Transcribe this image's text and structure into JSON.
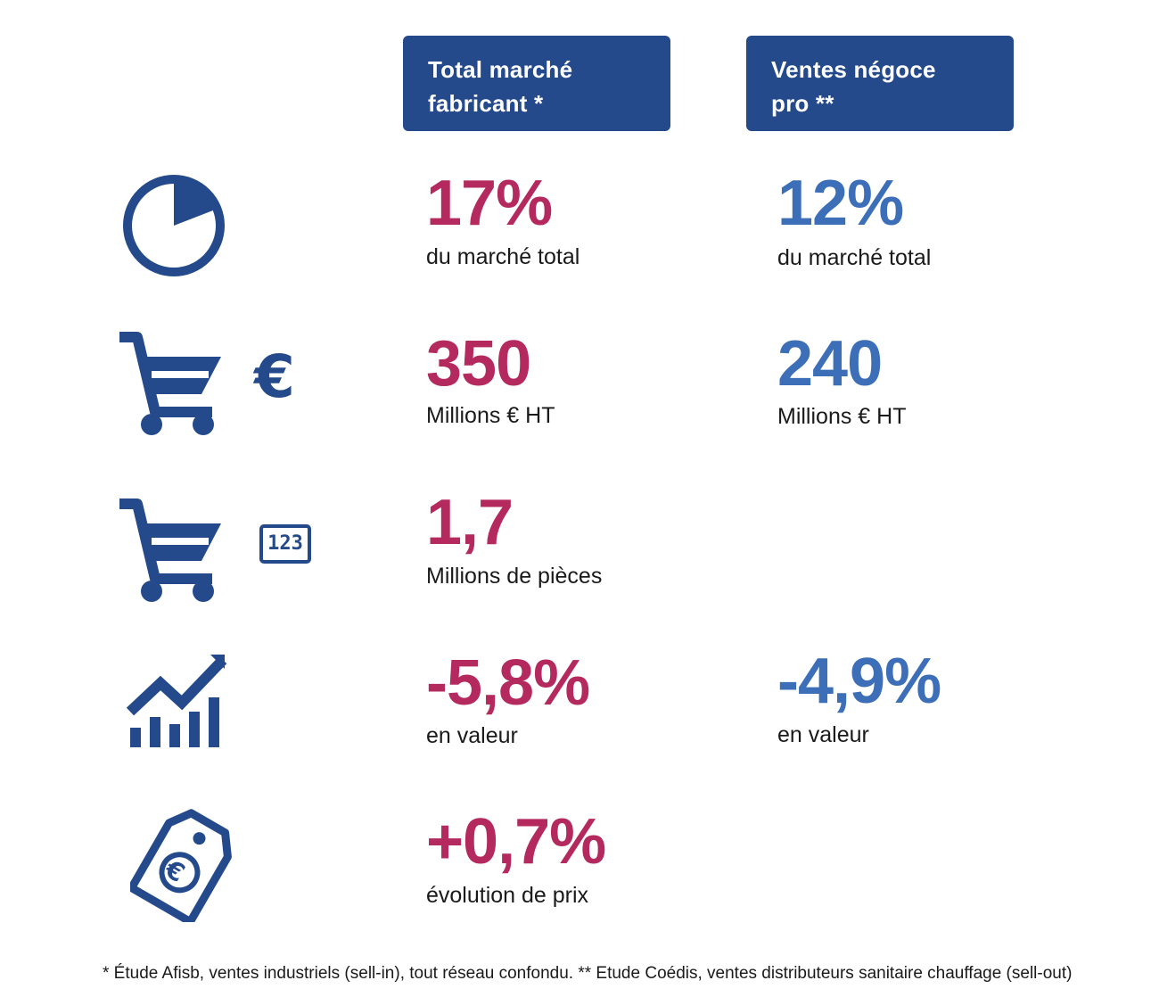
{
  "headers": {
    "col1_line1": "Total marché",
    "col1_line2": "fabricant *",
    "col2_line1": "Ventes négoce",
    "col2_line2": "pro **"
  },
  "rows": [
    {
      "icon": "pie-chart-icon",
      "col1": {
        "value": "17%",
        "label": "du marché total"
      },
      "col2": {
        "value": "12%",
        "label": "du marché total"
      }
    },
    {
      "icon": "cart-euro-icon",
      "badge": "€",
      "col1": {
        "value": "350",
        "label": "Millions € HT"
      },
      "col2": {
        "value": "240",
        "label": "Millions € HT"
      }
    },
    {
      "icon": "cart-count-icon",
      "badge": "123",
      "col1": {
        "value": "1,7",
        "label": "Millions de pièces"
      }
    },
    {
      "icon": "growth-chart-icon",
      "col1": {
        "value": "-5,8%",
        "label": "en valeur"
      },
      "col2": {
        "value": "-4,9%",
        "label": "en valeur"
      }
    },
    {
      "icon": "price-tag-euro-icon",
      "tag_symbol": "€",
      "col1": {
        "value": "+0,7%",
        "label": "évolution de prix"
      }
    }
  ],
  "footnote": "* Étude Afisb, ventes industriels (sell-in), tout réseau confondu. ** Etude Coédis, ventes distributeurs sanitaire chauffage (sell-out)",
  "colors": {
    "header_bg": "#244a8c",
    "icon": "#244a8c",
    "col1_accent": "#b4295e",
    "col2_accent": "#3c6fb8"
  }
}
